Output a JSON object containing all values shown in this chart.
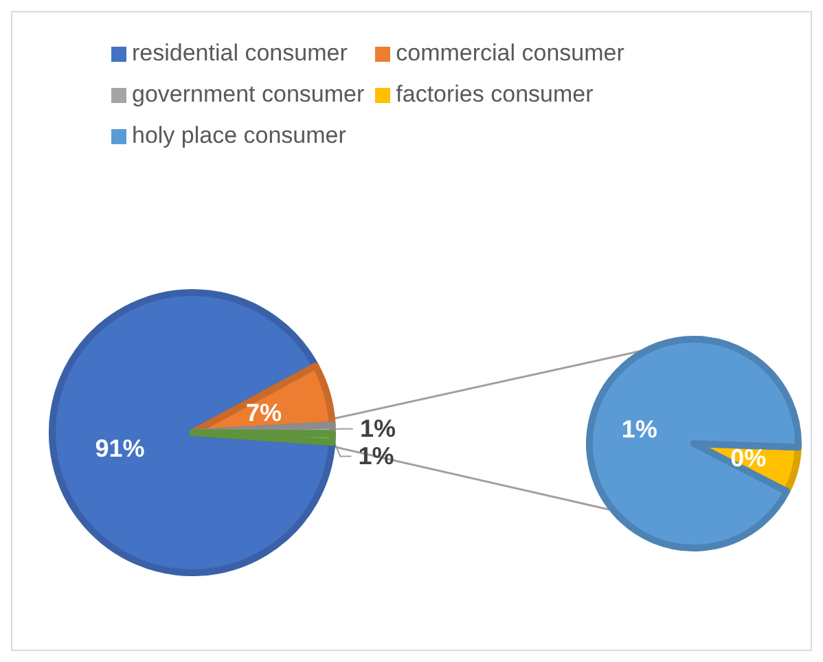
{
  "chart_data": [
    {
      "type": "pie",
      "categories": [
        "residential consumer",
        "commercial consumer",
        "government consumer",
        null
      ],
      "values": [
        91,
        7,
        1,
        1
      ],
      "value_labels": [
        "91%",
        "7%",
        "1%",
        "1%"
      ],
      "colors": [
        "#4472c4",
        "#ed7d31",
        "#a5a5a5",
        "#70ad47"
      ],
      "legend": "top"
    },
    {
      "type": "pie",
      "categories": [
        "factories consumer",
        "holy place consumer"
      ],
      "values": [
        0.07,
        0.93
      ],
      "value_labels": [
        "0%",
        "1%"
      ],
      "colors": [
        "#ffc000",
        "#5b9bd5"
      ],
      "legend": "top"
    }
  ]
}
